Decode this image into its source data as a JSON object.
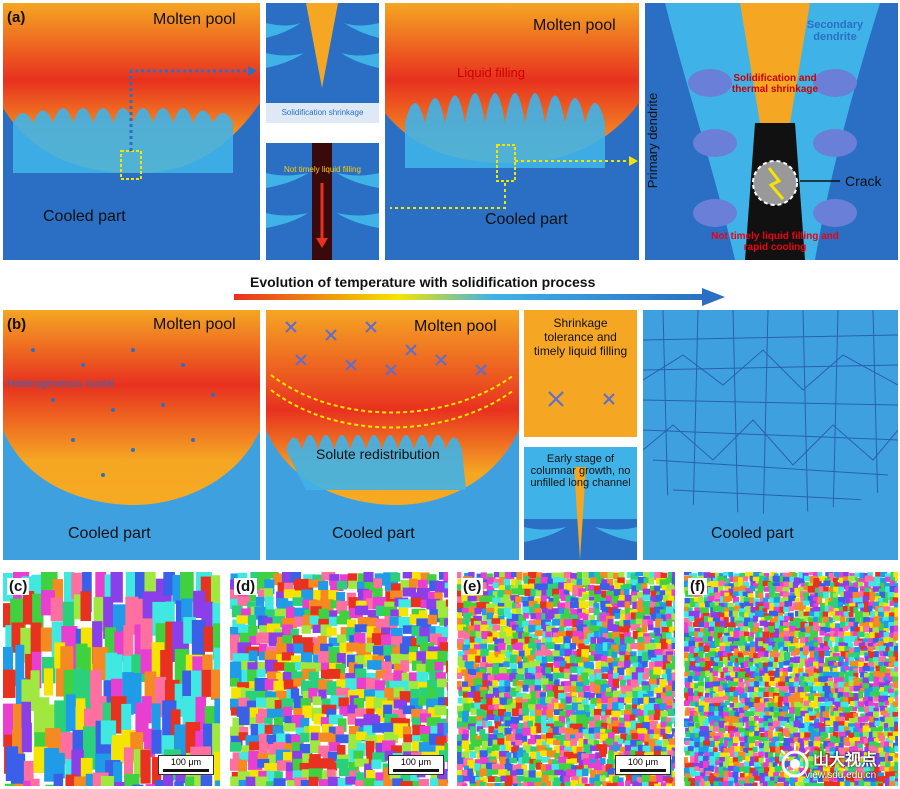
{
  "row_a": {
    "label": "(a)",
    "panel1": {
      "molten_pool": "Molten pool",
      "cooled_part": "Cooled part"
    },
    "panel2": {
      "top_caption": "Solidification shrinkage",
      "bottom_caption": "Not timely liquid filling"
    },
    "panel3": {
      "molten_pool": "Molten pool",
      "liquid_filling": "Liquid filling",
      "cooled_part": "Cooled part"
    },
    "panel4": {
      "secondary_dendrite": "Secondary dendrite",
      "shrinkage": "Solidification and thermal shrinkage",
      "primary_dendrite": "Primary dendrite",
      "crack": "Crack",
      "bottom_caption": "Not timely liquid filling and rapid cooling"
    }
  },
  "evolution_banner": "Evolution of temperature with solidification process",
  "row_b": {
    "label": "(b)",
    "panel1": {
      "molten_pool": "Molten pool",
      "nuclei": "Heterogeneous nuclei",
      "cooled_part": "Cooled part"
    },
    "panel2": {
      "molten_pool": "Molten pool",
      "solute": "Solute redistribution",
      "cooled_part": "Cooled part"
    },
    "panel3": {
      "top_caption": "Shrinkage tolerance and timely liquid filling",
      "bottom_caption": "Early stage of columnar growth, no unfilled long channel"
    },
    "panel4": {
      "cooled_part": "Cooled part"
    }
  },
  "ebsd": [
    {
      "label": "(c)",
      "scale": "100 μm"
    },
    {
      "label": "(d)",
      "scale": "100 μm"
    },
    {
      "label": "(e)",
      "scale": "100 μm"
    },
    {
      "label": "(f)",
      "scale": ""
    }
  ],
  "watermark": {
    "text": "山大视点",
    "url": "view.sdu.edu.cn"
  },
  "colors": {
    "molten_top": "#f5a623",
    "molten_mid": "#e8311f",
    "cooled": "#2a6fc4",
    "dendrite": "#3fb3e8",
    "arrow_yellow": "#f5e400"
  }
}
